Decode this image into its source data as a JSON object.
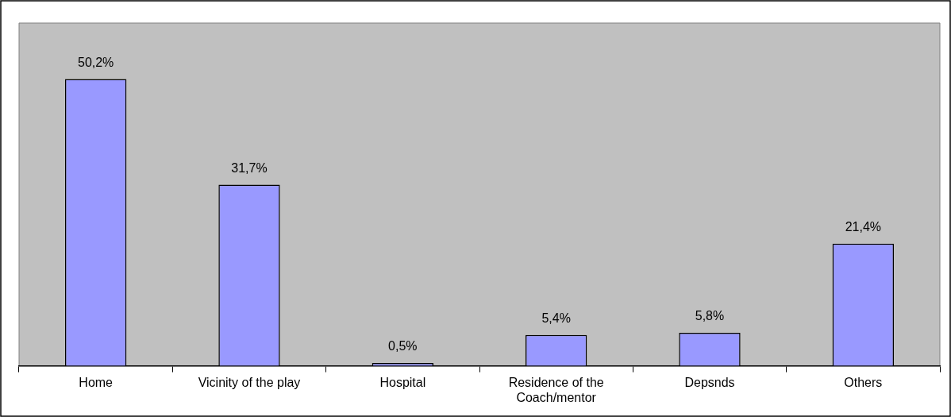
{
  "chart_data": {
    "type": "bar",
    "categories": [
      "Home",
      "Vicinity of the play",
      "Hospital",
      "Residence of the Coach/mentor",
      "Depsnds",
      "Others"
    ],
    "values": [
      50.2,
      31.7,
      0.5,
      5.4,
      5.8,
      21.4
    ],
    "value_labels": [
      "50,2%",
      "31,7%",
      "0,5%",
      "5,4%",
      "5,8%",
      "21,4%"
    ],
    "color": "#9999ff",
    "ylim": [
      0,
      60
    ],
    "grid": false,
    "legend": false
  }
}
